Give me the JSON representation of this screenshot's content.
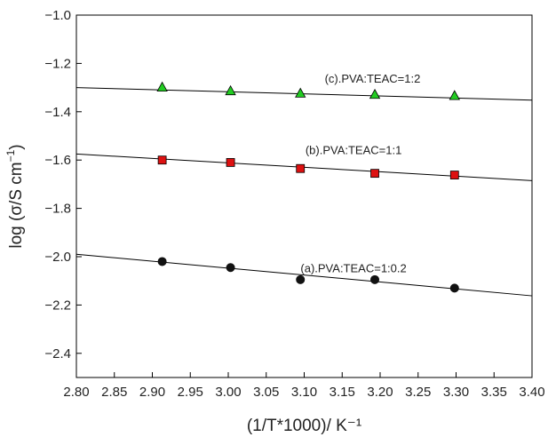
{
  "chart_data": {
    "type": "scatter",
    "xlabel": "(1/T*1000)/ K⁻¹",
    "ylabel_main": "log (σ/S cm",
    "ylabel_exp": "−1",
    "ylabel_close": ")",
    "xlim": [
      2.8,
      3.4
    ],
    "ylim": [
      -2.5,
      -1.0
    ],
    "xticks": [
      "2.80",
      "2.85",
      "2.90",
      "2.95",
      "3.00",
      "3.05",
      "3.10",
      "3.15",
      "3.20",
      "3.25",
      "3.30",
      "3.35",
      "3.40"
    ],
    "yticks": [
      "−1.0",
      "−1.2",
      "−1.4",
      "−1.6",
      "−1.8",
      "−2.0",
      "−2.2",
      "−2.4"
    ],
    "grid": false,
    "series": [
      {
        "name": "(c).PVA:TEAC=1:2",
        "marker": "triangle",
        "color": "#22cc22",
        "x": [
          2.913,
          3.003,
          3.095,
          3.193,
          3.298
        ],
        "y": [
          -1.3,
          -1.315,
          -1.325,
          -1.33,
          -1.335
        ],
        "fit": [
          [
            2.8,
            -1.3
          ],
          [
            3.4,
            -1.352
          ]
        ]
      },
      {
        "name": "(b).PVA:TEAC=1:1",
        "marker": "square",
        "color": "#dd1111",
        "x": [
          2.913,
          3.003,
          3.095,
          3.193,
          3.298
        ],
        "y": [
          -1.6,
          -1.61,
          -1.635,
          -1.655,
          -1.662
        ],
        "fit": [
          [
            2.8,
            -1.575
          ],
          [
            3.4,
            -1.685
          ]
        ]
      },
      {
        "name": "(a).PVA:TEAC=1:0.2",
        "marker": "circle",
        "color": "#111111",
        "x": [
          2.913,
          3.003,
          3.095,
          3.193,
          3.298
        ],
        "y": [
          -2.02,
          -2.045,
          -2.095,
          -2.095,
          -2.13
        ],
        "fit": [
          [
            2.8,
            -1.99
          ],
          [
            3.4,
            -2.162
          ]
        ]
      }
    ]
  }
}
